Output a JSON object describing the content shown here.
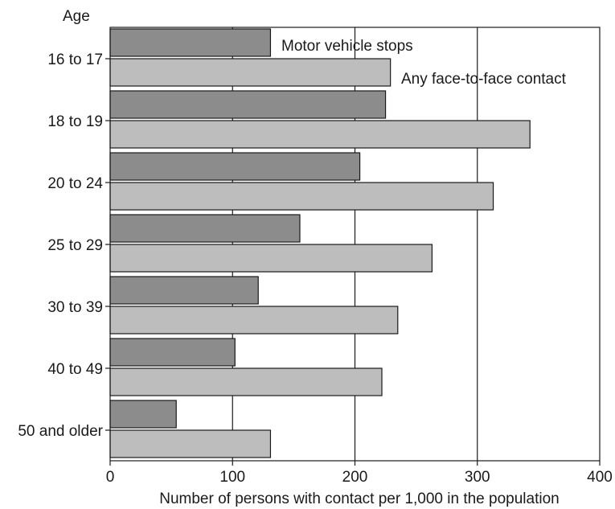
{
  "chart_data": {
    "type": "bar",
    "orientation": "horizontal",
    "title": "",
    "category_axis_label": "Age",
    "xlabel": "Number of persons with contact per 1,000 in the population",
    "xlim": [
      0,
      400
    ],
    "x_ticks": [
      0,
      100,
      200,
      300,
      400
    ],
    "grid": "vertical",
    "categories": [
      "16 to 17",
      "18 to 19",
      "20 to 24",
      "25 to 29",
      "30 to 39",
      "40 to 49",
      "50 and older"
    ],
    "series": [
      {
        "name": "Motor vehicle stops",
        "values": [
          131,
          225,
          204,
          155,
          121,
          102,
          54
        ],
        "color": "#8c8c8c"
      },
      {
        "name": "Any face-to-face contact",
        "values": [
          229,
          343,
          313,
          263,
          235,
          222,
          131
        ],
        "color": "#bdbdbd"
      }
    ]
  }
}
